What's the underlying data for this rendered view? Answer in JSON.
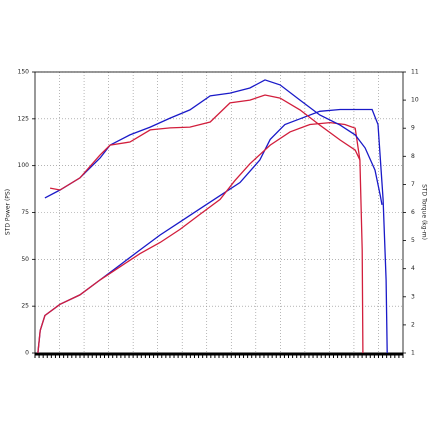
{
  "chart_data": {
    "type": "line",
    "y_label": "STD Power (PS)",
    "y2_label": "STD Torque (kg-m)",
    "xlim": [
      0,
      100
    ],
    "ylim": [
      0,
      150
    ],
    "yticks": [
      0,
      25,
      50,
      75,
      100,
      125,
      150
    ],
    "y2lim": [
      1,
      11
    ],
    "y2ticks": [
      1,
      2,
      3,
      4,
      5,
      6,
      7,
      8,
      9,
      10,
      11
    ],
    "grid": true,
    "series": [
      {
        "color": "#1a1ac8",
        "x": [
          0.8,
          1.4,
          2.7,
          6.8,
          12.2,
          17.7,
          23.1,
          28.5,
          34,
          39.4,
          44.8,
          50.3,
          55.7,
          61.1,
          63.9,
          67.9,
          72,
          77.4,
          82.9,
          88.3,
          91.6,
          93.2,
          94.6,
          95.4,
          95.7
        ],
        "values": [
          0,
          12,
          20,
          26,
          31,
          39,
          47,
          55,
          63,
          70,
          77,
          84,
          91,
          103,
          114,
          122,
          125,
          129,
          130,
          130,
          130,
          122,
          82,
          39,
          0
        ]
      },
      {
        "color": "#d21e3c",
        "x": [
          0.8,
          1.4,
          2.7,
          6.8,
          12.2,
          17.7,
          23.1,
          28.5,
          34,
          39.4,
          44.8,
          50.3,
          54.3,
          58.4,
          63.9,
          69.3,
          74.7,
          80.2,
          84.2,
          87,
          88.3,
          88.9,
          89.1
        ],
        "values": [
          0,
          12,
          20,
          26,
          31,
          39,
          46,
          53,
          59,
          66,
          74,
          82,
          92,
          101,
          111,
          118,
          122,
          123,
          122,
          120,
          103,
          55,
          0
        ]
      },
      {
        "color": "#1a1ac8",
        "axis": "y2",
        "x": [
          2.7,
          6.8,
          12.2,
          17.7,
          20.4,
          25.8,
          31.3,
          36.7,
          42.1,
          47.6,
          53,
          58.4,
          62.5,
          66.6,
          72,
          77.4,
          82.9,
          87,
          89.7,
          92.4,
          93.8,
          94.3
        ],
        "values": [
          6.52,
          6.8,
          7.23,
          7.94,
          8.4,
          8.76,
          9.04,
          9.36,
          9.65,
          10.15,
          10.25,
          10.43,
          10.72,
          10.54,
          10.0,
          9.47,
          9.11,
          8.76,
          8.3,
          7.51,
          6.62,
          6.27
        ]
      },
      {
        "color": "#d21e3c",
        "axis": "y2",
        "x": [
          4.1,
          6.8,
          12.2,
          17.7,
          20.4,
          25.8,
          31.3,
          36.7,
          42.1,
          47.6,
          53,
          58.4,
          62.5,
          66.6,
          72,
          77.4,
          82.9,
          87,
          88.3
        ],
        "values": [
          6.87,
          6.8,
          7.23,
          8.05,
          8.4,
          8.51,
          8.94,
          9.01,
          9.04,
          9.22,
          9.9,
          10.0,
          10.18,
          10.07,
          9.65,
          9.11,
          8.58,
          8.22,
          7.87
        ]
      }
    ]
  }
}
